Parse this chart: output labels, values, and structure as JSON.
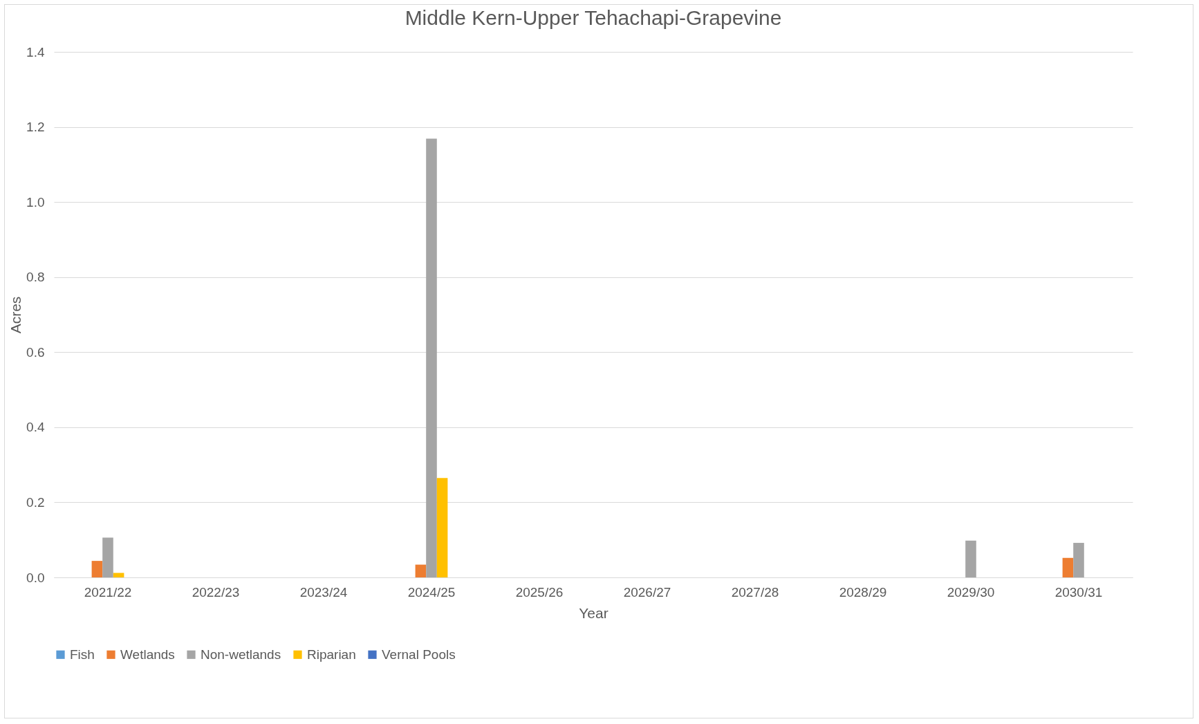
{
  "chart_data": {
    "type": "bar",
    "title": "Middle Kern-Upper Tehachapi-Grapevine",
    "xlabel": "Year",
    "ylabel": "Acres",
    "categories": [
      "2021/22",
      "2022/23",
      "2023/24",
      "2024/25",
      "2025/26",
      "2026/27",
      "2027/28",
      "2028/29",
      "2029/30",
      "2030/31"
    ],
    "series": [
      {
        "name": "Fish",
        "color": "#5b9bd5",
        "values": [
          null,
          null,
          null,
          null,
          null,
          null,
          null,
          null,
          null,
          null
        ]
      },
      {
        "name": "Wetlands",
        "color": "#ed7d31",
        "values": [
          0.044,
          null,
          null,
          0.034,
          null,
          null,
          null,
          null,
          null,
          0.052
        ]
      },
      {
        "name": "Non-wetlands",
        "color": "#a5a5a5",
        "values": [
          0.106,
          null,
          null,
          1.169,
          null,
          null,
          null,
          null,
          0.098,
          0.092
        ]
      },
      {
        "name": "Riparian",
        "color": "#ffc000",
        "values": [
          0.012,
          null,
          null,
          0.265,
          null,
          null,
          null,
          null,
          null,
          null
        ]
      },
      {
        "name": "Vernal Pools",
        "color": "#4472c4",
        "values": [
          null,
          null,
          null,
          null,
          null,
          null,
          null,
          null,
          null,
          null
        ]
      }
    ],
    "ylim": [
      0,
      1.4
    ],
    "yticks": [
      {
        "value": 0,
        "label": "0.0"
      },
      {
        "value": 0.2,
        "label": "0.2"
      },
      {
        "value": 0.4,
        "label": "0.4"
      },
      {
        "value": 0.6,
        "label": "0.6"
      },
      {
        "value": 0.8,
        "label": "0.8"
      },
      {
        "value": 1,
        "label": "1.0"
      },
      {
        "value": 1.2,
        "label": "1.2"
      },
      {
        "value": 1.4,
        "label": "1.4"
      }
    ],
    "grid": "y",
    "legend": "bottom"
  }
}
